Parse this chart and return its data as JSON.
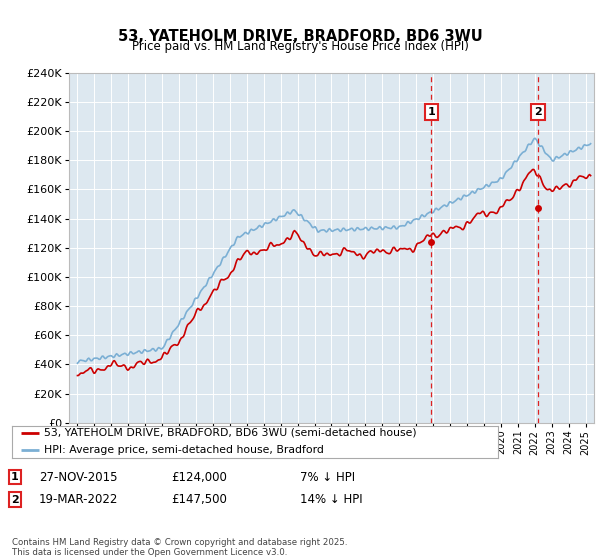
{
  "title": "53, YATEHOLM DRIVE, BRADFORD, BD6 3WU",
  "subtitle": "Price paid vs. HM Land Registry's House Price Index (HPI)",
  "ylabel_values": [
    "£0",
    "£20K",
    "£40K",
    "£60K",
    "£80K",
    "£100K",
    "£120K",
    "£140K",
    "£160K",
    "£180K",
    "£200K",
    "£220K",
    "£240K"
  ],
  "ylim": [
    0,
    240000
  ],
  "yticks": [
    0,
    20000,
    40000,
    60000,
    80000,
    100000,
    120000,
    140000,
    160000,
    180000,
    200000,
    220000,
    240000
  ],
  "xlim_start": 1994.5,
  "xlim_end": 2025.5,
  "sale1_date": 2015.9,
  "sale1_price": 124000,
  "sale1_label": "27-NOV-2015",
  "sale1_value": "£124,000",
  "sale1_note": "7% ↓ HPI",
  "sale2_date": 2022.2,
  "sale2_price": 147500,
  "sale2_label": "19-MAR-2022",
  "sale2_value": "£147,500",
  "sale2_note": "14% ↓ HPI",
  "red_line_color": "#cc0000",
  "blue_line_color": "#7bafd4",
  "vline_color": "#dd2222",
  "background_color": "#dde8f0",
  "plot_bg_color": "#dde8f0",
  "legend_label_red": "53, YATEHOLM DRIVE, BRADFORD, BD6 3WU (semi-detached house)",
  "legend_label_blue": "HPI: Average price, semi-detached house, Bradford",
  "footer": "Contains HM Land Registry data © Crown copyright and database right 2025.\nThis data is licensed under the Open Government Licence v3.0."
}
